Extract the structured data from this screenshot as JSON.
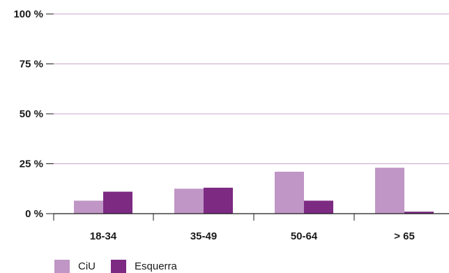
{
  "chart_data": {
    "type": "bar",
    "categories": [
      "18-34",
      "35-49",
      "50-64",
      "> 65"
    ],
    "series": [
      {
        "name": "CiU",
        "values": [
          6.5,
          12.5,
          21,
          23
        ],
        "color": "#bf96c5"
      },
      {
        "name": "Esquerra",
        "values": [
          11,
          13,
          6.5,
          1
        ],
        "color": "#7d2a83"
      }
    ],
    "y_ticks": [
      {
        "value": 0,
        "label": "0 %"
      },
      {
        "value": 25,
        "label": "25 %"
      },
      {
        "value": 50,
        "label": "50 %"
      },
      {
        "value": 75,
        "label": "75 %"
      },
      {
        "value": 100,
        "label": "100 %"
      }
    ],
    "ylim": [
      0,
      100
    ],
    "grid": true,
    "gridline_color": "#c9a6cc",
    "legend_position": "bottom-left"
  }
}
